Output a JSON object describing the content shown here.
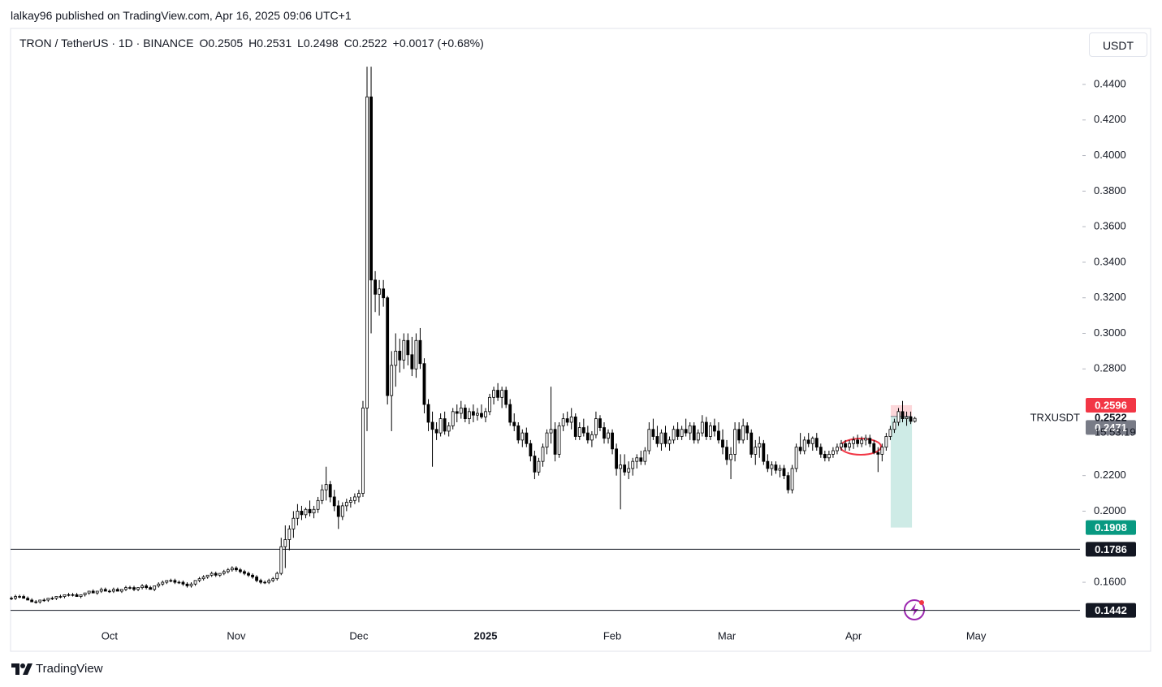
{
  "header": {
    "publisher": "lalkay96 published on TradingView.com, Apr 16, 2025 09:06 UTC+1"
  },
  "chart_data": {
    "type": "candlestick",
    "title": "TRON / TetherUS · 1D · BINANCE",
    "ohlc_legend": [
      "O0.2505",
      "H0.2531",
      "L0.2498",
      "C0.2522",
      "+0.0017 (+0.68%)"
    ],
    "currency": "USDT",
    "symbol": "TRXUSDT",
    "countdown": "15:53:19",
    "up_color": "#ffffff",
    "down_color": "#000000",
    "candles": [
      [
        0.151,
        0.152,
        0.15,
        0.151
      ],
      [
        0.151,
        0.153,
        0.15,
        0.152
      ],
      [
        0.152,
        0.153,
        0.151,
        0.152
      ],
      [
        0.152,
        0.153,
        0.151,
        0.151
      ],
      [
        0.151,
        0.152,
        0.15,
        0.15
      ],
      [
        0.15,
        0.151,
        0.149,
        0.149
      ],
      [
        0.149,
        0.15,
        0.148,
        0.149
      ],
      [
        0.149,
        0.15,
        0.148,
        0.15
      ],
      [
        0.15,
        0.151,
        0.149,
        0.15
      ],
      [
        0.15,
        0.151,
        0.149,
        0.151
      ],
      [
        0.151,
        0.152,
        0.15,
        0.151
      ],
      [
        0.151,
        0.152,
        0.15,
        0.152
      ],
      [
        0.152,
        0.153,
        0.151,
        0.152
      ],
      [
        0.152,
        0.153,
        0.151,
        0.153
      ],
      [
        0.153,
        0.154,
        0.152,
        0.153
      ],
      [
        0.153,
        0.154,
        0.152,
        0.153
      ],
      [
        0.153,
        0.154,
        0.152,
        0.152
      ],
      [
        0.152,
        0.153,
        0.151,
        0.153
      ],
      [
        0.153,
        0.154,
        0.152,
        0.154
      ],
      [
        0.154,
        0.155,
        0.153,
        0.155
      ],
      [
        0.155,
        0.156,
        0.154,
        0.154
      ],
      [
        0.154,
        0.155,
        0.153,
        0.155
      ],
      [
        0.155,
        0.157,
        0.154,
        0.156
      ],
      [
        0.156,
        0.157,
        0.155,
        0.155
      ],
      [
        0.155,
        0.156,
        0.154,
        0.155
      ],
      [
        0.155,
        0.157,
        0.154,
        0.156
      ],
      [
        0.156,
        0.157,
        0.155,
        0.155
      ],
      [
        0.155,
        0.156,
        0.154,
        0.156
      ],
      [
        0.156,
        0.158,
        0.155,
        0.157
      ],
      [
        0.157,
        0.158,
        0.156,
        0.157
      ],
      [
        0.157,
        0.158,
        0.155,
        0.156
      ],
      [
        0.156,
        0.157,
        0.155,
        0.157
      ],
      [
        0.157,
        0.159,
        0.156,
        0.158
      ],
      [
        0.158,
        0.159,
        0.156,
        0.157
      ],
      [
        0.157,
        0.158,
        0.156,
        0.156
      ],
      [
        0.156,
        0.158,
        0.155,
        0.158
      ],
      [
        0.158,
        0.16,
        0.157,
        0.159
      ],
      [
        0.159,
        0.161,
        0.158,
        0.16
      ],
      [
        0.16,
        0.161,
        0.159,
        0.161
      ],
      [
        0.161,
        0.162,
        0.16,
        0.161
      ],
      [
        0.161,
        0.162,
        0.159,
        0.16
      ],
      [
        0.16,
        0.161,
        0.159,
        0.16
      ],
      [
        0.16,
        0.161,
        0.158,
        0.159
      ],
      [
        0.159,
        0.16,
        0.157,
        0.158
      ],
      [
        0.158,
        0.16,
        0.157,
        0.159
      ],
      [
        0.159,
        0.161,
        0.158,
        0.161
      ],
      [
        0.161,
        0.163,
        0.16,
        0.162
      ],
      [
        0.162,
        0.164,
        0.161,
        0.163
      ],
      [
        0.163,
        0.164,
        0.162,
        0.164
      ],
      [
        0.164,
        0.166,
        0.163,
        0.165
      ],
      [
        0.165,
        0.166,
        0.163,
        0.164
      ],
      [
        0.164,
        0.165,
        0.163,
        0.165
      ],
      [
        0.165,
        0.167,
        0.164,
        0.166
      ],
      [
        0.166,
        0.168,
        0.165,
        0.167
      ],
      [
        0.167,
        0.169,
        0.166,
        0.168
      ],
      [
        0.168,
        0.169,
        0.166,
        0.167
      ],
      [
        0.167,
        0.168,
        0.165,
        0.166
      ],
      [
        0.166,
        0.167,
        0.164,
        0.165
      ],
      [
        0.165,
        0.166,
        0.163,
        0.164
      ],
      [
        0.164,
        0.165,
        0.162,
        0.163
      ],
      [
        0.163,
        0.164,
        0.16,
        0.161
      ],
      [
        0.161,
        0.162,
        0.159,
        0.16
      ],
      [
        0.16,
        0.161,
        0.159,
        0.16
      ],
      [
        0.16,
        0.162,
        0.159,
        0.161
      ],
      [
        0.161,
        0.163,
        0.16,
        0.162
      ],
      [
        0.162,
        0.166,
        0.161,
        0.165
      ],
      [
        0.165,
        0.185,
        0.164,
        0.18
      ],
      [
        0.18,
        0.192,
        0.168,
        0.184
      ],
      [
        0.184,
        0.192,
        0.178,
        0.19
      ],
      [
        0.19,
        0.2,
        0.185,
        0.196
      ],
      [
        0.196,
        0.204,
        0.192,
        0.2
      ],
      [
        0.2,
        0.203,
        0.195,
        0.198
      ],
      [
        0.198,
        0.202,
        0.196,
        0.201
      ],
      [
        0.201,
        0.206,
        0.197,
        0.199
      ],
      [
        0.199,
        0.203,
        0.196,
        0.201
      ],
      [
        0.201,
        0.208,
        0.199,
        0.206
      ],
      [
        0.206,
        0.215,
        0.204,
        0.212
      ],
      [
        0.212,
        0.225,
        0.206,
        0.215
      ],
      [
        0.215,
        0.217,
        0.205,
        0.208
      ],
      [
        0.208,
        0.212,
        0.2,
        0.203
      ],
      [
        0.203,
        0.206,
        0.19,
        0.197
      ],
      [
        0.197,
        0.205,
        0.195,
        0.203
      ],
      [
        0.203,
        0.207,
        0.2,
        0.205
      ],
      [
        0.205,
        0.208,
        0.202,
        0.206
      ],
      [
        0.206,
        0.21,
        0.204,
        0.208
      ],
      [
        0.208,
        0.212,
        0.205,
        0.21
      ],
      [
        0.21,
        0.262,
        0.208,
        0.258
      ],
      [
        0.258,
        0.45,
        0.245,
        0.433
      ],
      [
        0.433,
        0.45,
        0.3,
        0.33
      ],
      [
        0.33,
        0.335,
        0.312,
        0.322
      ],
      [
        0.322,
        0.33,
        0.31,
        0.325
      ],
      [
        0.325,
        0.33,
        0.315,
        0.32
      ],
      [
        0.32,
        0.321,
        0.26,
        0.265
      ],
      [
        0.265,
        0.29,
        0.245,
        0.282
      ],
      [
        0.282,
        0.3,
        0.27,
        0.29
      ],
      [
        0.29,
        0.297,
        0.278,
        0.285
      ],
      [
        0.285,
        0.3,
        0.28,
        0.296
      ],
      [
        0.296,
        0.3,
        0.282,
        0.288
      ],
      [
        0.288,
        0.298,
        0.276,
        0.28
      ],
      [
        0.28,
        0.3,
        0.275,
        0.296
      ],
      [
        0.296,
        0.303,
        0.28,
        0.283
      ],
      [
        0.283,
        0.286,
        0.255,
        0.26
      ],
      [
        0.26,
        0.263,
        0.245,
        0.25
      ],
      [
        0.25,
        0.256,
        0.225,
        0.246
      ],
      [
        0.246,
        0.25,
        0.24,
        0.244
      ],
      [
        0.244,
        0.255,
        0.242,
        0.252
      ],
      [
        0.252,
        0.256,
        0.243,
        0.245
      ],
      [
        0.245,
        0.25,
        0.242,
        0.248
      ],
      [
        0.248,
        0.258,
        0.246,
        0.256
      ],
      [
        0.256,
        0.26,
        0.25,
        0.255
      ],
      [
        0.255,
        0.262,
        0.252,
        0.258
      ],
      [
        0.258,
        0.26,
        0.25,
        0.252
      ],
      [
        0.252,
        0.258,
        0.249,
        0.256
      ],
      [
        0.256,
        0.26,
        0.25,
        0.254
      ],
      [
        0.254,
        0.258,
        0.251,
        0.255
      ],
      [
        0.255,
        0.26,
        0.252,
        0.253
      ],
      [
        0.253,
        0.258,
        0.25,
        0.256
      ],
      [
        0.256,
        0.266,
        0.254,
        0.264
      ],
      [
        0.264,
        0.27,
        0.26,
        0.268
      ],
      [
        0.268,
        0.272,
        0.262,
        0.264
      ],
      [
        0.264,
        0.27,
        0.258,
        0.268
      ],
      [
        0.268,
        0.27,
        0.258,
        0.26
      ],
      [
        0.26,
        0.263,
        0.248,
        0.25
      ],
      [
        0.25,
        0.255,
        0.245,
        0.248
      ],
      [
        0.248,
        0.25,
        0.238,
        0.24
      ],
      [
        0.24,
        0.246,
        0.236,
        0.244
      ],
      [
        0.244,
        0.247,
        0.236,
        0.238
      ],
      [
        0.238,
        0.24,
        0.228,
        0.231
      ],
      [
        0.231,
        0.234,
        0.218,
        0.222
      ],
      [
        0.222,
        0.23,
        0.22,
        0.228
      ],
      [
        0.228,
        0.238,
        0.225,
        0.236
      ],
      [
        0.236,
        0.246,
        0.232,
        0.244
      ],
      [
        0.244,
        0.27,
        0.238,
        0.246
      ],
      [
        0.246,
        0.25,
        0.228,
        0.232
      ],
      [
        0.232,
        0.25,
        0.23,
        0.248
      ],
      [
        0.248,
        0.255,
        0.245,
        0.252
      ],
      [
        0.252,
        0.256,
        0.248,
        0.25
      ],
      [
        0.25,
        0.258,
        0.246,
        0.253
      ],
      [
        0.253,
        0.255,
        0.24,
        0.242
      ],
      [
        0.242,
        0.25,
        0.24,
        0.247
      ],
      [
        0.247,
        0.252,
        0.242,
        0.244
      ],
      [
        0.244,
        0.248,
        0.238,
        0.24
      ],
      [
        0.24,
        0.245,
        0.236,
        0.243
      ],
      [
        0.243,
        0.256,
        0.241,
        0.252
      ],
      [
        0.252,
        0.254,
        0.245,
        0.247
      ],
      [
        0.247,
        0.25,
        0.238,
        0.241
      ],
      [
        0.241,
        0.246,
        0.238,
        0.244
      ],
      [
        0.244,
        0.246,
        0.232,
        0.235
      ],
      [
        0.235,
        0.238,
        0.22,
        0.224
      ],
      [
        0.224,
        0.232,
        0.201,
        0.226
      ],
      [
        0.226,
        0.232,
        0.22,
        0.222
      ],
      [
        0.222,
        0.228,
        0.218,
        0.224
      ],
      [
        0.224,
        0.23,
        0.22,
        0.228
      ],
      [
        0.228,
        0.232,
        0.224,
        0.23
      ],
      [
        0.23,
        0.234,
        0.226,
        0.228
      ],
      [
        0.228,
        0.236,
        0.226,
        0.234
      ],
      [
        0.234,
        0.25,
        0.232,
        0.246
      ],
      [
        0.246,
        0.252,
        0.24,
        0.242
      ],
      [
        0.242,
        0.248,
        0.236,
        0.238
      ],
      [
        0.238,
        0.246,
        0.234,
        0.244
      ],
      [
        0.244,
        0.248,
        0.236,
        0.238
      ],
      [
        0.238,
        0.242,
        0.234,
        0.24
      ],
      [
        0.24,
        0.248,
        0.238,
        0.246
      ],
      [
        0.246,
        0.25,
        0.24,
        0.242
      ],
      [
        0.242,
        0.248,
        0.24,
        0.246
      ],
      [
        0.246,
        0.252,
        0.242,
        0.244
      ],
      [
        0.244,
        0.25,
        0.24,
        0.248
      ],
      [
        0.248,
        0.25,
        0.238,
        0.24
      ],
      [
        0.24,
        0.246,
        0.238,
        0.244
      ],
      [
        0.244,
        0.254,
        0.242,
        0.25
      ],
      [
        0.25,
        0.253,
        0.24,
        0.242
      ],
      [
        0.242,
        0.25,
        0.24,
        0.248
      ],
      [
        0.248,
        0.252,
        0.242,
        0.245
      ],
      [
        0.245,
        0.25,
        0.238,
        0.24
      ],
      [
        0.24,
        0.246,
        0.232,
        0.236
      ],
      [
        0.236,
        0.24,
        0.226,
        0.229
      ],
      [
        0.229,
        0.236,
        0.218,
        0.232
      ],
      [
        0.232,
        0.25,
        0.228,
        0.246
      ],
      [
        0.246,
        0.25,
        0.238,
        0.24
      ],
      [
        0.24,
        0.252,
        0.238,
        0.248
      ],
      [
        0.248,
        0.25,
        0.24,
        0.244
      ],
      [
        0.244,
        0.246,
        0.23,
        0.232
      ],
      [
        0.232,
        0.24,
        0.226,
        0.236
      ],
      [
        0.236,
        0.242,
        0.23,
        0.238
      ],
      [
        0.238,
        0.24,
        0.226,
        0.228
      ],
      [
        0.228,
        0.232,
        0.222,
        0.224
      ],
      [
        0.224,
        0.228,
        0.22,
        0.226
      ],
      [
        0.226,
        0.228,
        0.221,
        0.223
      ],
      [
        0.223,
        0.226,
        0.219,
        0.224
      ],
      [
        0.224,
        0.226,
        0.218,
        0.22
      ],
      [
        0.22,
        0.222,
        0.21,
        0.212
      ],
      [
        0.212,
        0.226,
        0.21,
        0.224
      ],
      [
        0.224,
        0.238,
        0.222,
        0.236
      ],
      [
        0.236,
        0.244,
        0.232,
        0.234
      ],
      [
        0.234,
        0.242,
        0.232,
        0.24
      ],
      [
        0.24,
        0.244,
        0.236,
        0.238
      ],
      [
        0.238,
        0.242,
        0.234,
        0.241
      ],
      [
        0.241,
        0.244,
        0.234,
        0.236
      ],
      [
        0.236,
        0.238,
        0.23,
        0.232
      ],
      [
        0.232,
        0.234,
        0.228,
        0.23
      ],
      [
        0.23,
        0.234,
        0.228,
        0.232
      ],
      [
        0.232,
        0.236,
        0.23,
        0.234
      ],
      [
        0.234,
        0.238,
        0.232,
        0.236
      ],
      [
        0.236,
        0.24,
        0.234,
        0.238
      ],
      [
        0.238,
        0.24,
        0.234,
        0.236
      ],
      [
        0.236,
        0.24,
        0.234,
        0.238
      ],
      [
        0.238,
        0.242,
        0.235,
        0.24
      ],
      [
        0.24,
        0.243,
        0.236,
        0.238
      ],
      [
        0.238,
        0.242,
        0.236,
        0.24
      ],
      [
        0.24,
        0.243,
        0.237,
        0.241
      ],
      [
        0.241,
        0.243,
        0.236,
        0.238
      ],
      [
        0.238,
        0.24,
        0.232,
        0.233
      ],
      [
        0.233,
        0.236,
        0.222,
        0.232
      ],
      [
        0.232,
        0.238,
        0.228,
        0.236
      ],
      [
        0.236,
        0.244,
        0.234,
        0.242
      ],
      [
        0.242,
        0.248,
        0.24,
        0.246
      ],
      [
        0.246,
        0.252,
        0.244,
        0.25
      ],
      [
        0.25,
        0.258,
        0.248,
        0.256
      ],
      [
        0.256,
        0.262,
        0.25,
        0.252
      ],
      [
        0.252,
        0.256,
        0.248,
        0.253
      ],
      [
        0.253,
        0.256,
        0.249,
        0.2505
      ],
      [
        0.2505,
        0.2531,
        0.2498,
        0.2522
      ]
    ],
    "xlim": [
      -0.2,
      261.4
    ],
    "xticks": [
      {
        "value": 24,
        "label": "Oct"
      },
      {
        "value": 55,
        "label": "Nov"
      },
      {
        "value": 85,
        "label": "Dec"
      },
      {
        "value": 116,
        "label": "2025"
      },
      {
        "value": 147,
        "label": "Feb"
      },
      {
        "value": 175,
        "label": "Mar"
      },
      {
        "value": 206,
        "label": "Apr"
      },
      {
        "value": 236,
        "label": "May"
      }
    ],
    "ylim": [
      0.1212,
      0.4715
    ],
    "yticks": [
      {
        "value": 0.16,
        "label": "0.1600"
      },
      {
        "value": 0.2,
        "label": "0.2000"
      },
      {
        "value": 0.22,
        "label": "0.2200"
      },
      {
        "value": 0.28,
        "label": "0.2800"
      },
      {
        "value": 0.3,
        "label": "0.3000"
      },
      {
        "value": 0.32,
        "label": "0.3200"
      },
      {
        "value": 0.34,
        "label": "0.3400"
      },
      {
        "value": 0.36,
        "label": "0.3600"
      },
      {
        "value": 0.38,
        "label": "0.3800"
      },
      {
        "value": 0.4,
        "label": "0.4000"
      },
      {
        "value": 0.42,
        "label": "0.4200"
      },
      {
        "value": 0.44,
        "label": "0.4400"
      }
    ],
    "position": {
      "start": 215.1,
      "end": 220.3,
      "entry": 0.2533,
      "stop": 0.2596,
      "target": 0.1908,
      "stop_color": "#f23645",
      "target_color": "#089981"
    },
    "price_labels": [
      {
        "value": 0.2471,
        "color": "#787b86",
        "line": false
      },
      {
        "value": 0.1786,
        "color": "#131722",
        "line": true
      },
      {
        "value": 0.1442,
        "color": "#131722",
        "line": true
      }
    ]
  },
  "footer": {
    "brand": "TradingView"
  }
}
